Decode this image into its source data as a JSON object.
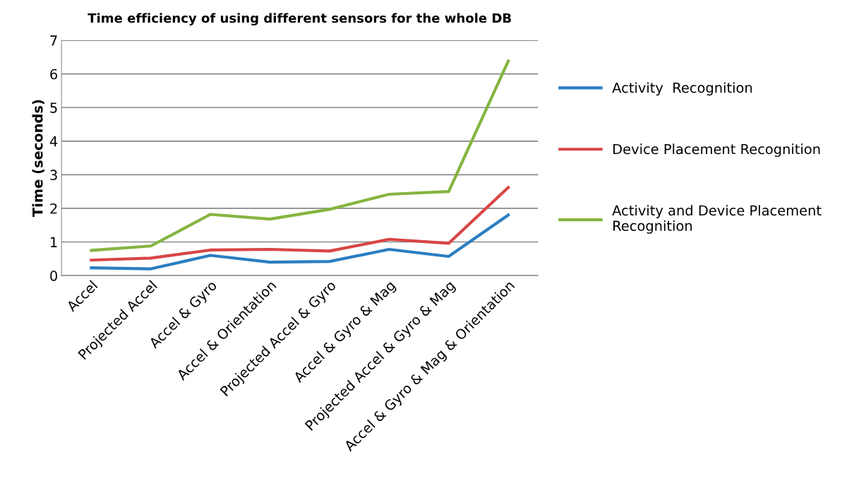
{
  "chart_data": {
    "type": "line",
    "title": "Time efficiency of using different sensors for the whole DB",
    "ylabel": "Time (seconds)",
    "categories": [
      "Accel",
      "Projected Accel",
      "Accel & Gyro",
      "Accel & Orientation",
      "Projected Accel & Gyro",
      "Accel & Gyro & Mag",
      "Projected Accel & Gyro & Mag",
      "Accel & Gyro & Mag & Orientation"
    ],
    "series": [
      {
        "name": "Activity  Recognition",
        "color": "#2a7ec1",
        "values": [
          0.23,
          0.2,
          0.6,
          0.4,
          0.42,
          0.78,
          0.57,
          1.8
        ]
      },
      {
        "name": "Device Placement Recognition",
        "color": "#d94545",
        "values": [
          0.46,
          0.52,
          0.76,
          0.78,
          0.73,
          1.08,
          0.96,
          2.62
        ]
      },
      {
        "name": "Activity and Device Placement Recognition",
        "color": "#85b540",
        "values": [
          0.75,
          0.88,
          1.82,
          1.68,
          1.97,
          2.42,
          2.5,
          6.38
        ]
      }
    ],
    "ylim": [
      0,
      7
    ],
    "yticks": [
      0,
      1,
      2,
      3,
      4,
      5,
      6,
      7
    ],
    "grid": "y",
    "legend": "right",
    "marker": "none",
    "line_style": "solid"
  }
}
